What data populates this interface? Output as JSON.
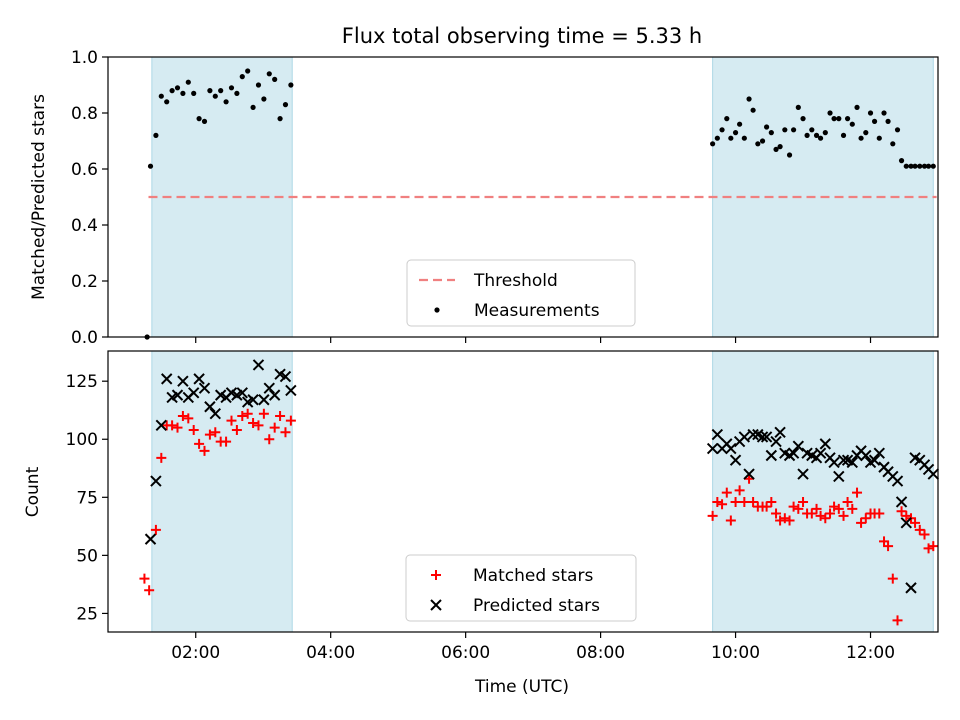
{
  "title": "Flux total observing time = 5.33 h",
  "colors": {
    "shade": "#add8e6",
    "threshold": "#f08080",
    "matched": "#ff0000",
    "predicted": "#000000",
    "measurements": "#000000"
  },
  "chart_data": [
    {
      "type": "scatter",
      "ylabel": "Matched/Predicted stars",
      "xlim": [
        0.7,
        13.0
      ],
      "ylim": [
        0.0,
        1.0
      ],
      "yticks": [
        "0.0",
        "0.2",
        "0.4",
        "0.6",
        "0.8",
        "1.0"
      ],
      "ytick_values": [
        0.0,
        0.2,
        0.4,
        0.6,
        0.8,
        1.0
      ],
      "shaded_spans": [
        [
          1.35,
          3.43
        ],
        [
          9.66,
          12.93
        ]
      ],
      "threshold": {
        "name": "Threshold",
        "value": 0.5,
        "xrange": [
          1.3,
          12.98
        ]
      },
      "legend": {
        "loc": "lower center",
        "items": [
          "Threshold",
          "Measurements"
        ]
      },
      "series": [
        {
          "name": "Measurements",
          "x": [
            1.28,
            1.33,
            1.41,
            1.49,
            1.57,
            1.65,
            1.73,
            1.81,
            1.89,
            1.97,
            2.05,
            2.13,
            2.21,
            2.29,
            2.37,
            2.45,
            2.53,
            2.61,
            2.69,
            2.77,
            2.85,
            2.93,
            3.01,
            3.09,
            3.17,
            3.25,
            3.33,
            3.41,
            9.66,
            9.73,
            9.8,
            9.87,
            9.93,
            10.0,
            10.06,
            10.13,
            10.2,
            10.26,
            10.33,
            10.4,
            10.46,
            10.53,
            10.6,
            10.66,
            10.73,
            10.8,
            10.86,
            10.93,
            11.0,
            11.06,
            11.13,
            11.2,
            11.26,
            11.33,
            11.4,
            11.46,
            11.53,
            11.6,
            11.66,
            11.73,
            11.8,
            11.86,
            11.93,
            12.0,
            12.06,
            12.13,
            12.2,
            12.26,
            12.33,
            12.4,
            12.46,
            12.53,
            12.6,
            12.66,
            12.73,
            12.8,
            12.86,
            12.93
          ],
          "y": [
            0.0,
            0.61,
            0.72,
            0.86,
            0.84,
            0.88,
            0.89,
            0.87,
            0.91,
            0.87,
            0.78,
            0.77,
            0.88,
            0.86,
            0.88,
            0.84,
            0.89,
            0.87,
            0.93,
            0.95,
            0.82,
            0.9,
            0.85,
            0.94,
            0.92,
            0.78,
            0.83,
            0.9,
            0.69,
            0.71,
            0.74,
            0.78,
            0.71,
            0.73,
            0.76,
            0.71,
            0.85,
            0.81,
            0.69,
            0.7,
            0.75,
            0.73,
            0.67,
            0.68,
            0.74,
            0.65,
            0.74,
            0.82,
            0.78,
            0.72,
            0.74,
            0.72,
            0.71,
            0.73,
            0.8,
            0.78,
            0.78,
            0.72,
            0.78,
            0.76,
            0.82,
            0.71,
            0.73,
            0.8,
            0.77,
            0.71,
            0.8,
            0.77,
            0.69,
            0.74,
            0.63,
            0.61,
            0.61,
            0.61,
            0.61,
            0.61,
            0.61,
            0.61
          ]
        }
      ]
    },
    {
      "type": "scatter",
      "xlabel": "Time (UTC)",
      "ylabel": "Count",
      "xlim": [
        0.7,
        13.0
      ],
      "ylim": [
        17,
        138
      ],
      "xticks": [
        "02:00",
        "04:00",
        "06:00",
        "08:00",
        "10:00",
        "12:00"
      ],
      "xtick_values": [
        2,
        4,
        6,
        8,
        10,
        12
      ],
      "yticks": [
        "25",
        "50",
        "75",
        "100",
        "125"
      ],
      "ytick_values": [
        25,
        50,
        75,
        100,
        125
      ],
      "shaded_spans": [
        [
          1.35,
          3.43
        ],
        [
          9.66,
          12.93
        ]
      ],
      "legend": {
        "loc": "lower center",
        "items": [
          "Matched stars",
          "Predicted stars"
        ]
      },
      "series": [
        {
          "name": "Matched stars",
          "marker": "+",
          "x": [
            1.24,
            1.31,
            1.41,
            1.49,
            1.57,
            1.65,
            1.73,
            1.81,
            1.89,
            1.97,
            2.05,
            2.13,
            2.21,
            2.29,
            2.37,
            2.45,
            2.53,
            2.61,
            2.69,
            2.77,
            2.85,
            2.93,
            3.01,
            3.09,
            3.17,
            3.25,
            3.33,
            3.41,
            9.66,
            9.73,
            9.8,
            9.87,
            9.93,
            10.0,
            10.06,
            10.13,
            10.2,
            10.26,
            10.33,
            10.4,
            10.46,
            10.53,
            10.6,
            10.66,
            10.73,
            10.8,
            10.86,
            10.93,
            11.0,
            11.06,
            11.13,
            11.2,
            11.26,
            11.33,
            11.4,
            11.46,
            11.53,
            11.6,
            11.66,
            11.73,
            11.8,
            11.86,
            11.93,
            12.0,
            12.06,
            12.13,
            12.2,
            12.26,
            12.33,
            12.4,
            12.46,
            12.53,
            12.6,
            12.66,
            12.73,
            12.8,
            12.86,
            12.93
          ],
          "y": [
            40,
            35,
            61,
            92,
            106,
            106,
            105,
            110,
            109,
            104,
            98,
            95,
            102,
            103,
            99,
            99,
            108,
            104,
            110,
            111,
            107,
            106,
            111,
            100,
            105,
            110,
            103,
            108,
            67,
            73,
            72,
            77,
            65,
            73,
            78,
            73,
            83,
            73,
            71,
            71,
            71,
            73,
            68,
            65,
            66,
            65,
            71,
            70,
            73,
            68,
            68,
            70,
            67,
            66,
            68,
            71,
            70,
            67,
            73,
            70,
            77,
            64,
            66,
            68,
            68,
            68,
            56,
            54,
            40,
            22,
            69,
            67,
            66,
            64,
            61,
            59,
            53,
            54
          ]
        },
        {
          "name": "Predicted stars",
          "marker": "x",
          "x": [
            1.33,
            1.41,
            1.49,
            1.57,
            1.65,
            1.73,
            1.81,
            1.89,
            1.97,
            2.05,
            2.13,
            2.21,
            2.29,
            2.37,
            2.45,
            2.53,
            2.61,
            2.69,
            2.77,
            2.85,
            2.93,
            3.01,
            3.09,
            3.17,
            3.25,
            3.33,
            3.41,
            9.66,
            9.73,
            9.8,
            9.87,
            9.93,
            10.0,
            10.06,
            10.13,
            10.2,
            10.26,
            10.33,
            10.4,
            10.46,
            10.53,
            10.6,
            10.66,
            10.73,
            10.8,
            10.86,
            10.93,
            11.0,
            11.06,
            11.13,
            11.2,
            11.26,
            11.33,
            11.4,
            11.46,
            11.53,
            11.6,
            11.66,
            11.73,
            11.8,
            11.86,
            11.93,
            12.0,
            12.06,
            12.13,
            12.2,
            12.26,
            12.33,
            12.4,
            12.46,
            12.53,
            12.6,
            12.66,
            12.73,
            12.8,
            12.86,
            12.93
          ],
          "y": [
            57,
            82,
            106,
            126,
            118,
            119,
            125,
            118,
            120,
            126,
            122,
            114,
            111,
            119,
            118,
            120,
            119,
            120,
            116,
            117,
            132,
            117,
            122,
            119,
            128,
            127,
            121,
            96,
            102,
            96,
            98,
            96,
            91,
            99,
            101,
            85,
            102,
            102,
            101,
            101,
            93,
            99,
            103,
            94,
            93,
            94,
            97,
            85,
            94,
            93,
            92,
            94,
            98,
            92,
            90,
            84,
            91,
            91,
            90,
            93,
            95,
            93,
            90,
            91,
            94,
            88,
            86,
            84,
            82,
            73,
            64,
            36,
            92,
            91,
            89,
            87,
            85
          ]
        }
      ]
    }
  ]
}
